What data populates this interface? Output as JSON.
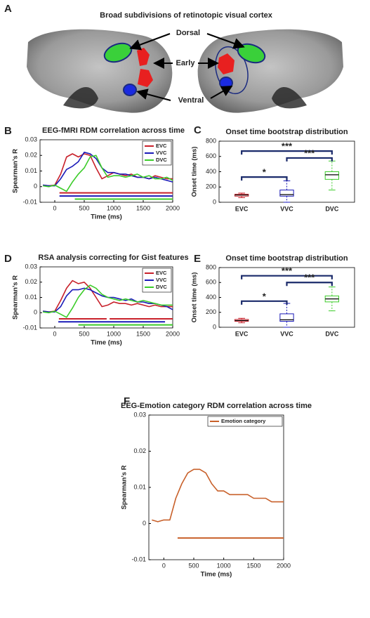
{
  "diagram": {
    "panel": "A",
    "title": "Broad subdivisions of retinotopic visual cortex",
    "labels": [
      "Dorsal",
      "Early",
      "Ventral"
    ]
  },
  "chart_data": [
    {
      "type": "line",
      "panel": "B",
      "title": "EEG-fMRI RDM correlation across time",
      "x_label": "Time (ms)",
      "y_label": "Spearman’s R",
      "xlim": [
        -250,
        2000
      ],
      "xticks": [
        0,
        500,
        1000,
        1500,
        2000
      ],
      "ylim": [
        -0.01,
        0.03
      ],
      "yticks": [
        -0.01,
        0,
        0.01,
        0.02,
        0.03
      ],
      "legend": "upper right",
      "x": [
        -200,
        -100,
        0,
        100,
        200,
        300,
        400,
        500,
        600,
        700,
        800,
        900,
        1000,
        1100,
        1200,
        1300,
        1400,
        1500,
        1600,
        1700,
        1800,
        1900,
        2000
      ],
      "series": [
        {
          "name": "EVC",
          "color": "#c8202a",
          "values": [
            0.001,
            0.0005,
            0.001,
            0.008,
            0.019,
            0.021,
            0.019,
            0.021,
            0.02,
            0.012,
            0.005,
            0.007,
            0.009,
            0.008,
            0.007,
            0.008,
            0.006,
            0.006,
            0.005,
            0.007,
            0.006,
            0.005,
            0.005
          ]
        },
        {
          "name": "VVC",
          "color": "#1a1ab8",
          "values": [
            0.001,
            0.0005,
            0.0005,
            0.005,
            0.011,
            0.013,
            0.016,
            0.022,
            0.021,
            0.018,
            0.012,
            0.009,
            0.009,
            0.008,
            0.008,
            0.007,
            0.006,
            0.006,
            0.005,
            0.006,
            0.005,
            0.004,
            0.003
          ]
        },
        {
          "name": "DVC",
          "color": "#3ccc2a",
          "values": [
            0.0005,
            0,
            0.001,
            -0.001,
            -0.003,
            0.003,
            0.008,
            0.012,
            0.019,
            0.02,
            0.012,
            0.006,
            0.007,
            0.007,
            0.006,
            0.007,
            0.008,
            0.006,
            0.007,
            0.005,
            0.005,
            0.006,
            0.004
          ]
        }
      ],
      "significance": [
        {
          "color": "#c8202a",
          "y": -0.004,
          "x": [
            80,
            2000
          ]
        },
        {
          "color": "#1a1ab8",
          "y": -0.006,
          "x": [
            80,
            2000
          ]
        },
        {
          "color": "#3ccc2a",
          "y": -0.008,
          "x": [
            340,
            2000
          ]
        }
      ]
    },
    {
      "type": "box",
      "panel": "C",
      "title": "Onset time bootstrap distribution",
      "y_label": "Onset time (ms)",
      "categories": [
        "EVC",
        "VVC",
        "DVC"
      ],
      "colors": [
        "#c8202a",
        "#1a1ab8",
        "#3ccc2a"
      ],
      "ylim": [
        0,
        800
      ],
      "yticks": [
        0,
        200,
        400,
        600,
        800
      ],
      "boxes": [
        {
          "whisker_low": 60,
          "q1": 80,
          "median": 95,
          "q3": 105,
          "whisker_high": 120
        },
        {
          "whisker_low": 0,
          "q1": 80,
          "median": 100,
          "q3": 160,
          "whisker_high": 280
        },
        {
          "whisker_low": 160,
          "q1": 300,
          "median": 360,
          "q3": 400,
          "whisker_high": 540
        }
      ],
      "brackets": [
        {
          "between": [
            "EVC",
            "VVC"
          ],
          "y": 330,
          "label": "*"
        },
        {
          "between": [
            "EVC",
            "DVC"
          ],
          "y": 670,
          "label": "***"
        },
        {
          "between": [
            "VVC",
            "DVC"
          ],
          "y": 580,
          "label": "***"
        }
      ]
    },
    {
      "type": "line",
      "panel": "D",
      "title": "RSA analysis correcting for Gist features",
      "x_label": "Time (ms)",
      "y_label": "Spearman’s R",
      "xlim": [
        -250,
        2000
      ],
      "xticks": [
        0,
        500,
        1000,
        1500,
        2000
      ],
      "ylim": [
        -0.01,
        0.03
      ],
      "yticks": [
        -0.01,
        0,
        0.01,
        0.02,
        0.03
      ],
      "legend": "upper right",
      "x": [
        -200,
        -100,
        0,
        100,
        200,
        300,
        400,
        500,
        600,
        700,
        800,
        900,
        1000,
        1100,
        1200,
        1300,
        1400,
        1500,
        1600,
        1700,
        1800,
        1900,
        2000
      ],
      "series": [
        {
          "name": "EVC",
          "color": "#c8202a",
          "values": [
            0.001,
            0.0005,
            0.001,
            0.008,
            0.016,
            0.021,
            0.019,
            0.02,
            0.016,
            0.01,
            0.004,
            0.005,
            0.007,
            0.006,
            0.006,
            0.005,
            0.006,
            0.005,
            0.004,
            0.005,
            0.004,
            0.004,
            0.004
          ]
        },
        {
          "name": "VVC",
          "color": "#1a1ab8",
          "values": [
            0.001,
            0.0005,
            0.0005,
            0.004,
            0.011,
            0.015,
            0.015,
            0.016,
            0.015,
            0.013,
            0.011,
            0.01,
            0.01,
            0.009,
            0.008,
            0.009,
            0.007,
            0.007,
            0.006,
            0.006,
            0.005,
            0.004,
            0.002
          ]
        },
        {
          "name": "DVC",
          "color": "#3ccc2a",
          "values": [
            0.0005,
            0,
            0.001,
            -0.001,
            -0.003,
            0.003,
            0.01,
            0.015,
            0.018,
            0.016,
            0.012,
            0.01,
            0.009,
            0.008,
            0.009,
            0.008,
            0.007,
            0.008,
            0.007,
            0.006,
            0.005,
            0.005,
            0.005
          ]
        }
      ],
      "significance": [
        {
          "color": "#c8202a",
          "y": -0.004,
          "x": [
            70,
            880
          ]
        },
        {
          "color": "#c8202a",
          "y": -0.004,
          "x": [
            930,
            2000
          ]
        },
        {
          "color": "#1a1ab8",
          "y": -0.006,
          "x": [
            60,
            1870
          ]
        },
        {
          "color": "#3ccc2a",
          "y": -0.008,
          "x": [
            400,
            2000
          ]
        }
      ]
    },
    {
      "type": "box",
      "panel": "E",
      "title": "Onset time bootstrap distribution",
      "y_label": "Onset time (ms)",
      "categories": [
        "EVC",
        "VVC",
        "DVC"
      ],
      "colors": [
        "#c8202a",
        "#1a1ab8",
        "#3ccc2a"
      ],
      "ylim": [
        0,
        800
      ],
      "yticks": [
        0,
        200,
        400,
        600,
        800
      ],
      "boxes": [
        {
          "whisker_low": 60,
          "q1": 80,
          "median": 90,
          "q3": 105,
          "whisker_high": 120
        },
        {
          "whisker_low": 0,
          "q1": 80,
          "median": 100,
          "q3": 180,
          "whisker_high": 320
        },
        {
          "whisker_low": 220,
          "q1": 340,
          "median": 380,
          "q3": 420,
          "whisker_high": 540
        }
      ],
      "brackets": [
        {
          "between": [
            "EVC",
            "VVC"
          ],
          "y": 350,
          "label": "*"
        },
        {
          "between": [
            "EVC",
            "DVC"
          ],
          "y": 690,
          "label": "***"
        },
        {
          "between": [
            "VVC",
            "DVC"
          ],
          "y": 600,
          "label": "***"
        }
      ]
    },
    {
      "type": "line",
      "panel": "F",
      "title": "EEG-Emotion category RDM correlation across time",
      "x_label": "Time (ms)",
      "y_label": "Spearman’s R",
      "xlim": [
        -250,
        2000
      ],
      "xticks": [
        0,
        500,
        1000,
        1500,
        2000
      ],
      "ylim": [
        -0.01,
        0.03
      ],
      "yticks": [
        -0.01,
        0,
        0.01,
        0.02,
        0.03
      ],
      "legend": "upper right",
      "x": [
        -200,
        -100,
        0,
        100,
        200,
        300,
        400,
        500,
        600,
        700,
        800,
        900,
        1000,
        1100,
        1200,
        1300,
        1400,
        1500,
        1600,
        1700,
        1800,
        1900,
        2000
      ],
      "series": [
        {
          "name": "Emotion category",
          "color": "#c8602a",
          "values": [
            0.001,
            0.0005,
            0.001,
            0.001,
            0.007,
            0.011,
            0.014,
            0.015,
            0.015,
            0.014,
            0.011,
            0.009,
            0.009,
            0.008,
            0.008,
            0.008,
            0.008,
            0.007,
            0.007,
            0.007,
            0.006,
            0.006,
            0.006
          ]
        }
      ],
      "significance": [
        {
          "color": "#c8602a",
          "y": -0.004,
          "x": [
            230,
            2000
          ]
        }
      ]
    }
  ]
}
